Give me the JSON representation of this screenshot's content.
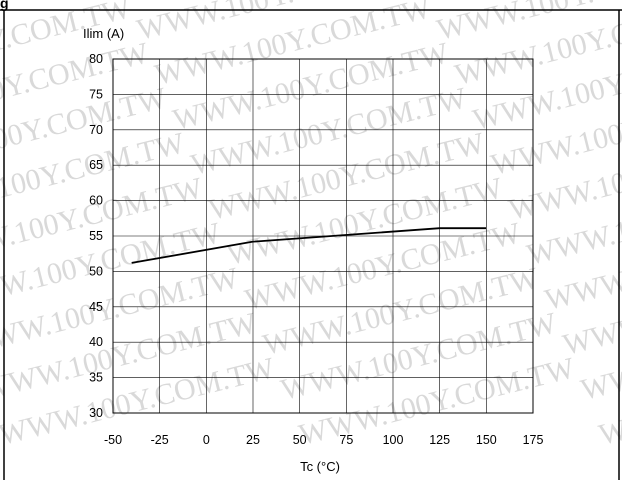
{
  "header_fragment": "g",
  "watermark": "WWW.100Y.COM.TW",
  "chart_data": {
    "type": "line",
    "ylabel": "Ilim (A)",
    "xlabel": "Tc (°C)",
    "xlim": [
      -50,
      175
    ],
    "ylim": [
      30,
      80
    ],
    "x_ticks": [
      -50,
      -25,
      0,
      25,
      50,
      75,
      100,
      125,
      150,
      175
    ],
    "y_ticks": [
      30,
      35,
      40,
      45,
      50,
      55,
      60,
      65,
      70,
      75,
      80
    ],
    "grid": true,
    "series": [
      {
        "x": [
          -40,
          25,
          125,
          150
        ],
        "y": [
          51.2,
          54.2,
          56.1,
          56.1
        ]
      }
    ]
  },
  "colors": {
    "line": "#000000",
    "grid": "#000000",
    "watermark": "#d9d9d9"
  }
}
